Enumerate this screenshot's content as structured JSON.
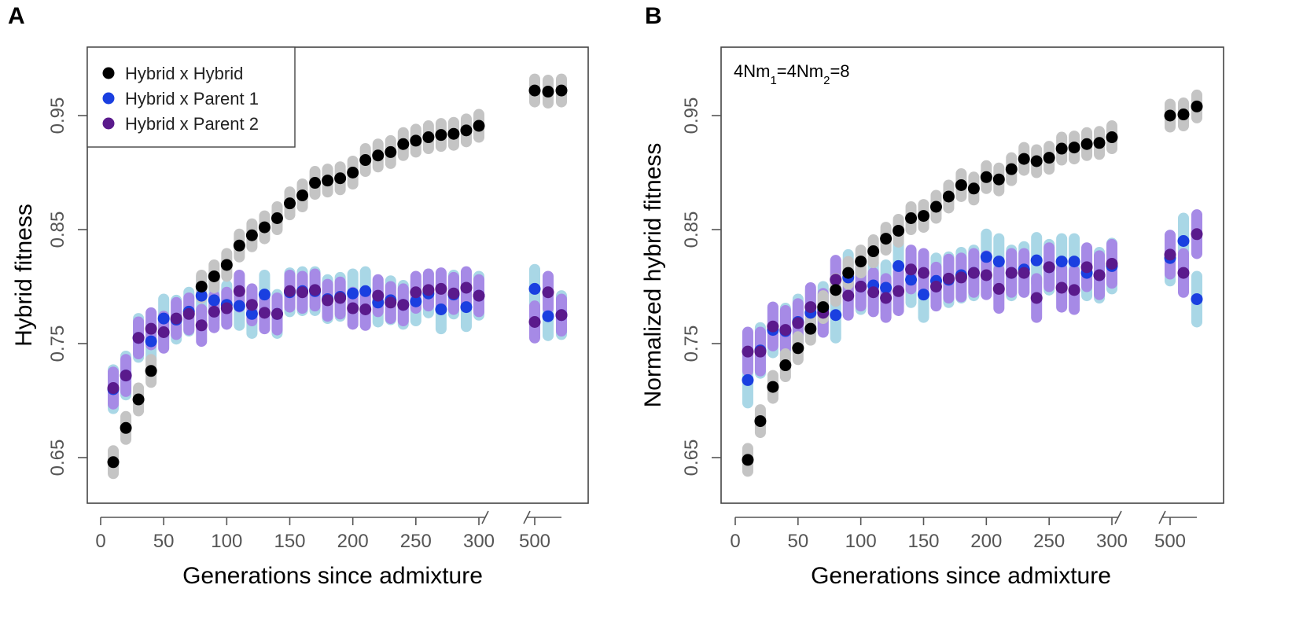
{
  "chart_data": [
    {
      "panel": "A",
      "type": "scatter",
      "xlabel": "Generations since admixture",
      "ylabel": "Hybrid fitness",
      "annotation": "",
      "ylim": [
        0.61,
        1.01
      ],
      "x_ticks_left": [
        0,
        50,
        100,
        150,
        200,
        250,
        300
      ],
      "x_ticks_right": [
        500
      ],
      "y_ticks": [
        "0.65",
        "0.75",
        "0.85",
        "0.95"
      ],
      "legend_position": "top-left",
      "grid": false,
      "series": [
        {
          "name": "Hybrid x Hybrid",
          "point_color": "#000000",
          "band_color": "#c4c4c4",
          "band_halfwidth": 0.01,
          "x": [
            10,
            20,
            30,
            40,
            80,
            90,
            100,
            110,
            120,
            130,
            140,
            150,
            160,
            170,
            180,
            190,
            200,
            210,
            220,
            230,
            240,
            250,
            260,
            270,
            280,
            290,
            300
          ],
          "y": [
            0.646,
            0.676,
            0.701,
            0.726,
            0.8,
            0.809,
            0.819,
            0.836,
            0.845,
            0.852,
            0.86,
            0.873,
            0.88,
            0.891,
            0.893,
            0.895,
            0.9,
            0.911,
            0.915,
            0.918,
            0.925,
            0.928,
            0.931,
            0.933,
            0.934,
            0.937,
            0.941
          ],
          "x_break": [
            500,
            510,
            520
          ],
          "y_break": [
            0.972,
            0.971,
            0.972
          ]
        },
        {
          "name": "Hybrid x Parent 1",
          "point_color": "#1a3fe0",
          "band_color": "#a9d7e6",
          "band_halfwidth": 0.017,
          "x": [
            10,
            20,
            30,
            40,
            50,
            60,
            70,
            80,
            90,
            100,
            110,
            120,
            130,
            140,
            150,
            160,
            170,
            180,
            190,
            200,
            210,
            220,
            230,
            240,
            250,
            260,
            270,
            280,
            290,
            300
          ],
          "y": [
            0.71,
            0.722,
            0.755,
            0.752,
            0.772,
            0.771,
            0.778,
            0.792,
            0.788,
            0.784,
            0.783,
            0.776,
            0.793,
            0.776,
            0.795,
            0.796,
            0.796,
            0.789,
            0.791,
            0.794,
            0.796,
            0.786,
            0.788,
            0.784,
            0.787,
            0.794,
            0.78,
            0.793,
            0.782,
            0.792
          ],
          "x_break": [
            500,
            510,
            520
          ],
          "y_break": [
            0.798,
            0.774,
            0.775
          ]
        },
        {
          "name": "Hybrid x Parent 2",
          "point_color": "#5a1a8c",
          "band_color": "#a68ae6",
          "band_halfwidth": 0.014,
          "x": [
            10,
            20,
            30,
            40,
            50,
            60,
            70,
            80,
            90,
            100,
            110,
            120,
            130,
            140,
            150,
            160,
            170,
            180,
            190,
            200,
            210,
            220,
            230,
            240,
            250,
            260,
            270,
            280,
            290,
            300
          ],
          "y": [
            0.711,
            0.722,
            0.755,
            0.763,
            0.76,
            0.772,
            0.776,
            0.766,
            0.778,
            0.781,
            0.796,
            0.784,
            0.777,
            0.776,
            0.796,
            0.795,
            0.797,
            0.788,
            0.79,
            0.781,
            0.78,
            0.792,
            0.786,
            0.784,
            0.795,
            0.797,
            0.798,
            0.794,
            0.799,
            0.792
          ],
          "x_break": [
            500,
            510,
            520
          ],
          "y_break": [
            0.769,
            0.795,
            0.775
          ]
        }
      ]
    },
    {
      "panel": "B",
      "type": "scatter",
      "xlabel": "Generations since admixture",
      "ylabel": "Normalized hybrid fitness",
      "annotation": "4Nm1=4Nm2=8",
      "ylim": [
        0.61,
        1.01
      ],
      "x_ticks_left": [
        0,
        50,
        100,
        150,
        200,
        250,
        300
      ],
      "x_ticks_right": [
        500
      ],
      "y_ticks": [
        "0.65",
        "0.75",
        "0.85",
        "0.95"
      ],
      "grid": false,
      "series": [
        {
          "name": "Hybrid x Hybrid",
          "point_color": "#000000",
          "band_color": "#c4c4c4",
          "band_halfwidth": 0.01,
          "x": [
            10,
            20,
            30,
            40,
            50,
            60,
            70,
            80,
            90,
            100,
            110,
            120,
            130,
            140,
            150,
            160,
            170,
            180,
            190,
            200,
            210,
            220,
            230,
            240,
            250,
            260,
            270,
            280,
            290,
            300
          ],
          "y": [
            0.648,
            0.682,
            0.712,
            0.731,
            0.746,
            0.763,
            0.782,
            0.797,
            0.812,
            0.822,
            0.831,
            0.842,
            0.849,
            0.86,
            0.862,
            0.87,
            0.879,
            0.889,
            0.886,
            0.896,
            0.894,
            0.903,
            0.912,
            0.91,
            0.913,
            0.921,
            0.922,
            0.925,
            0.926,
            0.931
          ],
          "x_break": [
            500,
            510,
            520
          ],
          "y_break": [
            0.95,
            0.951,
            0.958
          ]
        },
        {
          "name": "Hybrid x Parent 1",
          "point_color": "#1a3fe0",
          "band_color": "#a9d7e6",
          "band_halfwidth": 0.02,
          "x": [
            10,
            20,
            30,
            40,
            50,
            60,
            70,
            80,
            90,
            100,
            110,
            120,
            130,
            140,
            150,
            160,
            170,
            180,
            190,
            200,
            210,
            220,
            230,
            240,
            250,
            260,
            270,
            280,
            290,
            300
          ],
          "y": [
            0.718,
            0.744,
            0.762,
            0.761,
            0.769,
            0.777,
            0.78,
            0.775,
            0.808,
            0.8,
            0.801,
            0.799,
            0.818,
            0.806,
            0.793,
            0.805,
            0.806,
            0.81,
            0.812,
            0.826,
            0.822,
            0.812,
            0.815,
            0.823,
            0.817,
            0.822,
            0.822,
            0.812,
            0.81,
            0.818
          ],
          "x_break": [
            500,
            510,
            520
          ],
          "y_break": [
            0.825,
            0.84,
            0.789
          ]
        },
        {
          "name": "Hybrid x Parent 2",
          "point_color": "#5a1a8c",
          "band_color": "#a68ae6",
          "band_halfwidth": 0.017,
          "x": [
            10,
            20,
            30,
            40,
            50,
            60,
            70,
            80,
            90,
            100,
            110,
            120,
            130,
            140,
            150,
            160,
            170,
            180,
            190,
            200,
            210,
            220,
            230,
            240,
            250,
            260,
            270,
            280,
            290,
            300
          ],
          "y": [
            0.743,
            0.743,
            0.765,
            0.762,
            0.768,
            0.782,
            0.777,
            0.806,
            0.792,
            0.8,
            0.795,
            0.79,
            0.796,
            0.815,
            0.812,
            0.8,
            0.807,
            0.808,
            0.812,
            0.81,
            0.798,
            0.812,
            0.812,
            0.79,
            0.817,
            0.799,
            0.797,
            0.817,
            0.81,
            0.82
          ],
          "x_break": [
            500,
            510,
            520
          ],
          "y_break": [
            0.828,
            0.812,
            0.846
          ]
        }
      ]
    }
  ]
}
